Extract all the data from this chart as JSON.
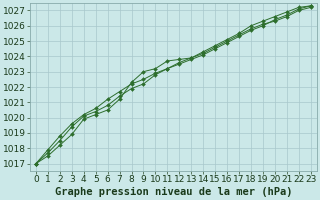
{
  "background_color": "#cbe8e8",
  "plot_bg_color": "#cbe8e8",
  "grid_color": "#a8c8cc",
  "line_color": "#2d6e2d",
  "marker_color": "#2d6e2d",
  "title": "Graphe pression niveau de la mer (hPa)",
  "title_fontsize": 7.5,
  "tick_fontsize": 6.5,
  "ylim": [
    1016.5,
    1027.5
  ],
  "xlim": [
    -0.5,
    23.5
  ],
  "yticks": [
    1017,
    1018,
    1019,
    1020,
    1021,
    1022,
    1023,
    1024,
    1025,
    1026,
    1027
  ],
  "xticks": [
    0,
    1,
    2,
    3,
    4,
    5,
    6,
    7,
    8,
    9,
    10,
    11,
    12,
    13,
    14,
    15,
    16,
    17,
    18,
    19,
    20,
    21,
    22,
    23
  ],
  "series1": [
    1017.0,
    1017.5,
    1018.2,
    1018.9,
    1019.9,
    1020.2,
    1020.5,
    1021.2,
    1022.3,
    1023.0,
    1023.2,
    1023.7,
    1023.8,
    1023.9,
    1024.2,
    1024.6,
    1025.0,
    1025.4,
    1025.8,
    1026.1,
    1026.3,
    1026.6,
    1027.0,
    1027.2
  ],
  "series2": [
    1017.0,
    1017.7,
    1018.5,
    1019.4,
    1020.1,
    1020.4,
    1020.8,
    1021.4,
    1021.9,
    1022.2,
    1022.8,
    1023.2,
    1023.5,
    1023.8,
    1024.1,
    1024.5,
    1024.9,
    1025.3,
    1025.7,
    1026.0,
    1026.4,
    1026.7,
    1027.1,
    1027.3
  ],
  "series3": [
    1017.0,
    1017.9,
    1018.8,
    1019.6,
    1020.2,
    1020.6,
    1021.2,
    1021.7,
    1022.2,
    1022.5,
    1022.9,
    1023.2,
    1023.6,
    1023.9,
    1024.3,
    1024.7,
    1025.1,
    1025.5,
    1026.0,
    1026.3,
    1026.6,
    1026.9,
    1027.2,
    1027.3
  ]
}
